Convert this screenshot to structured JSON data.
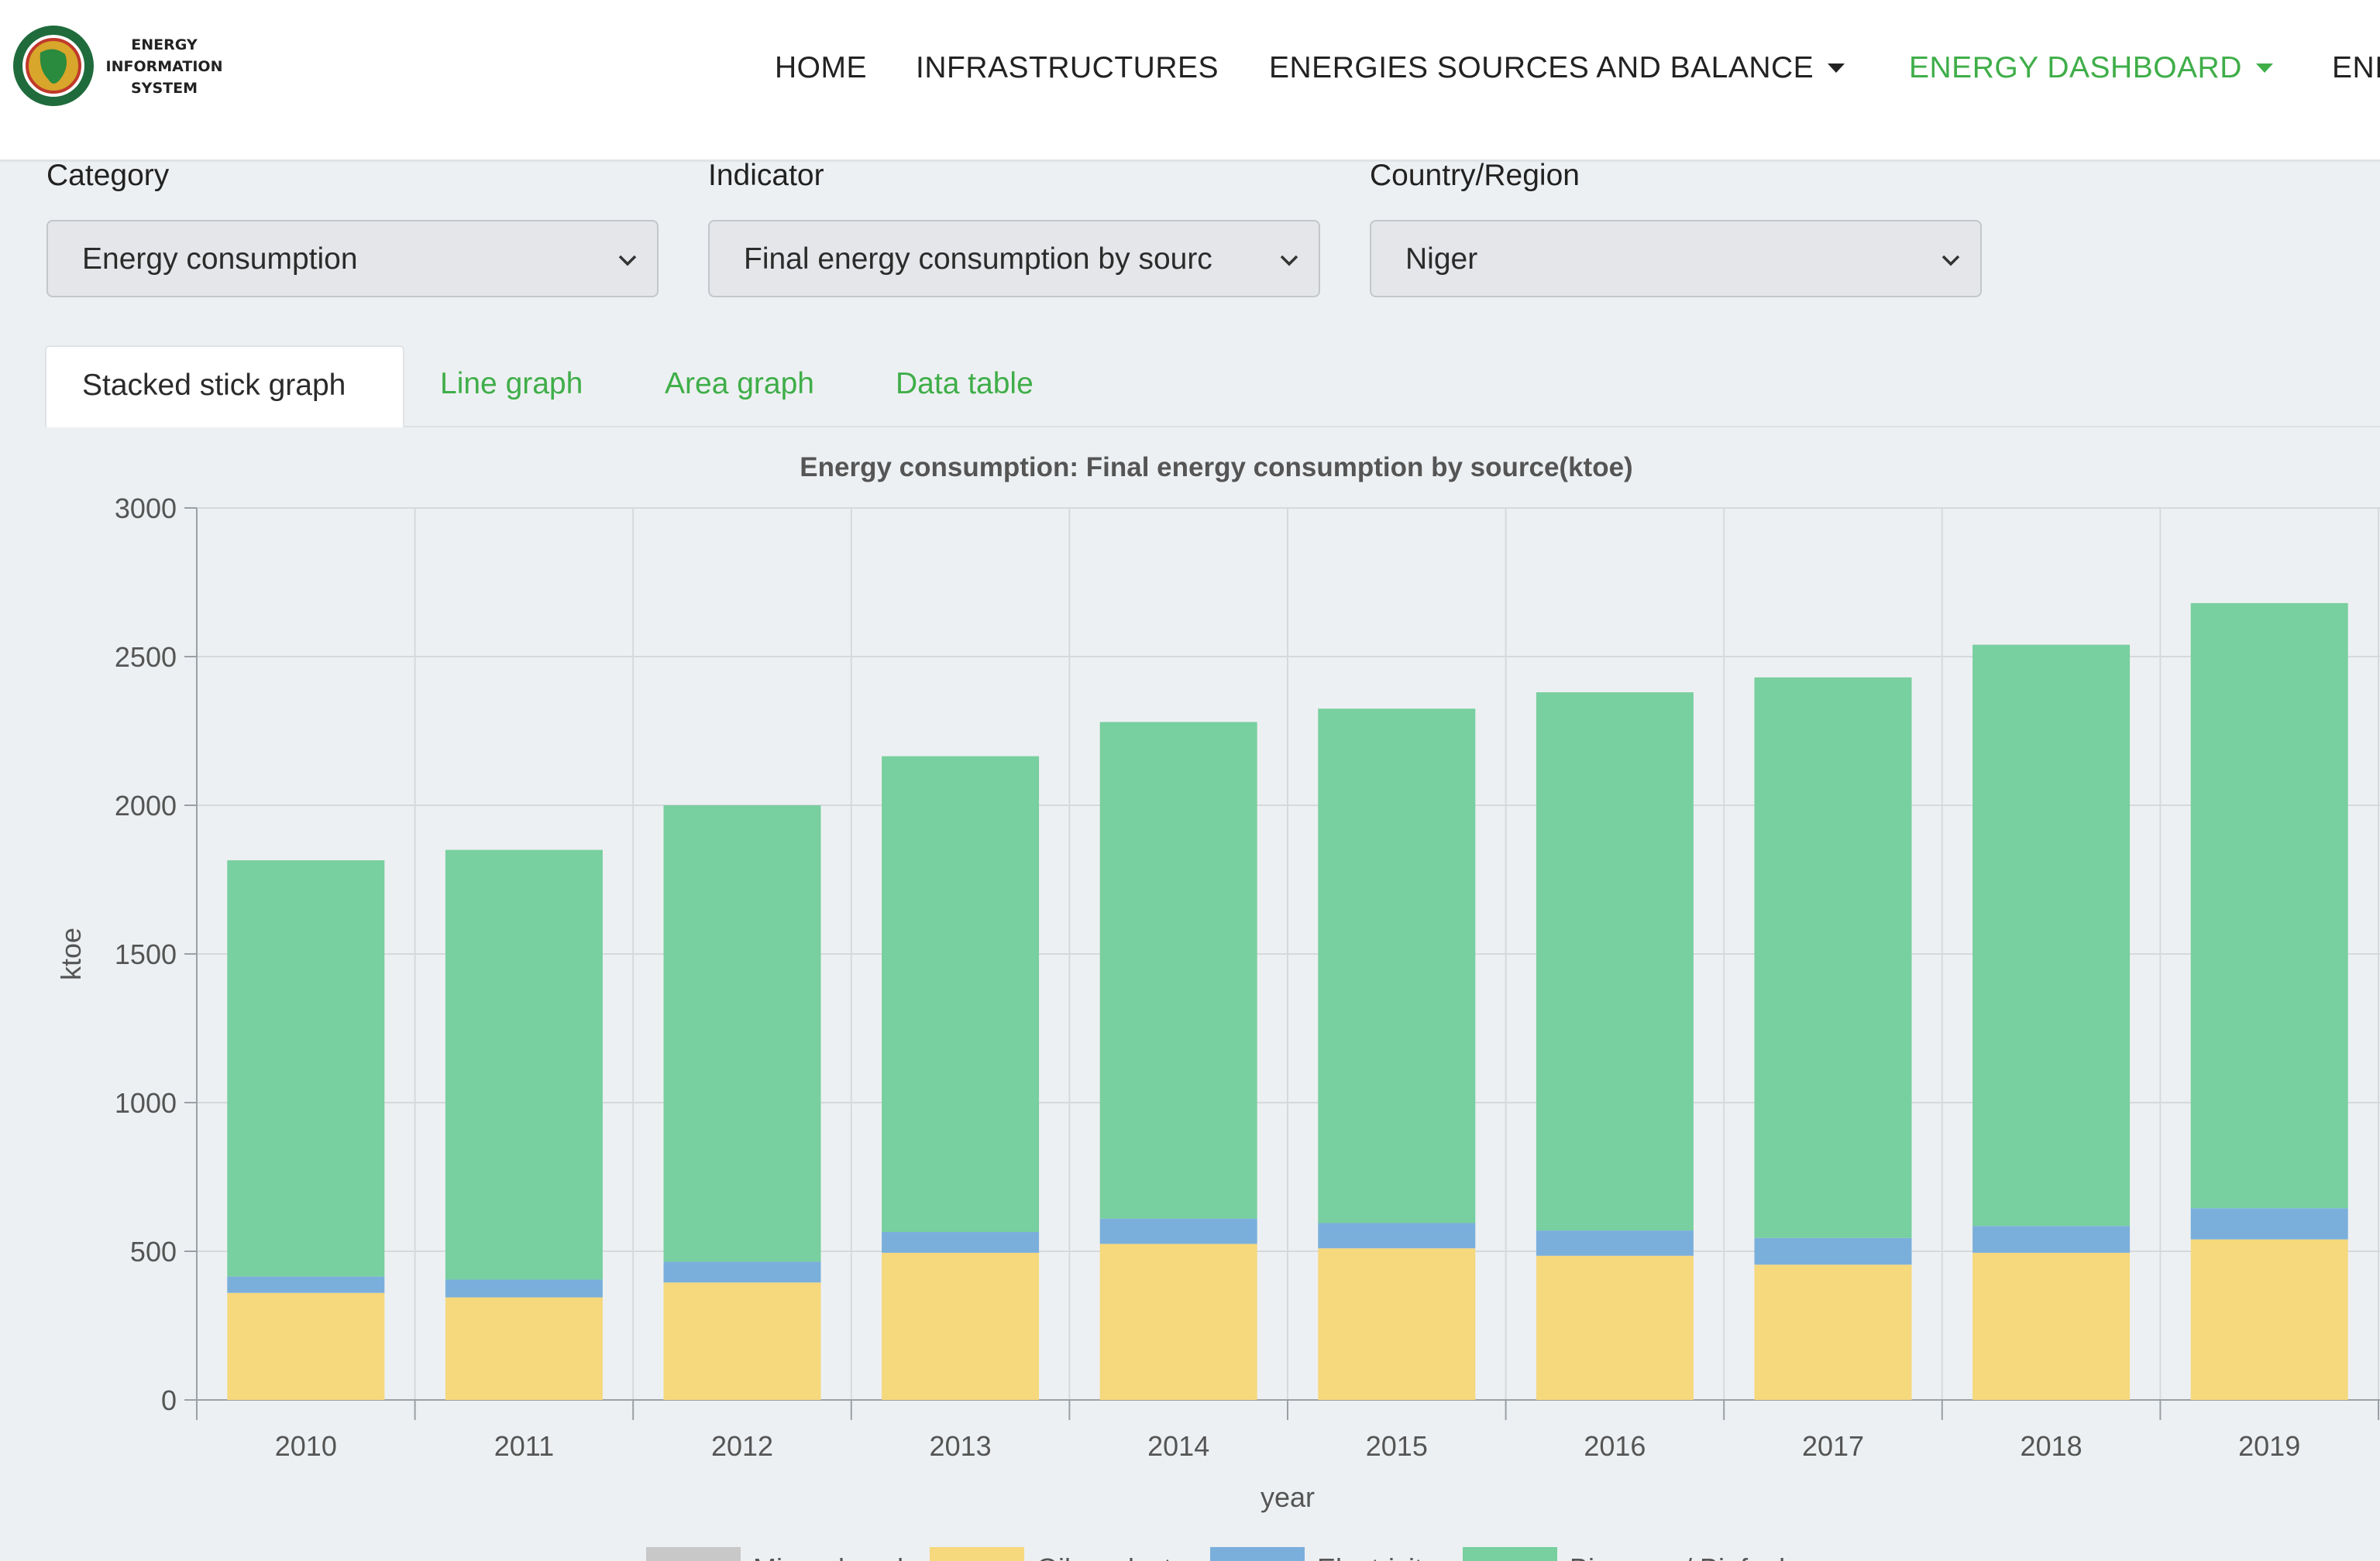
{
  "header": {
    "logo_lines": [
      "ENERGY",
      "INFORMATION",
      "SYSTEM"
    ],
    "nav": [
      {
        "label": "HOME",
        "active": false,
        "dropdown": false
      },
      {
        "label": "INFRASTRUCTURES",
        "active": false,
        "dropdown": false
      },
      {
        "label": "ENERGIES SOURCES AND BALANCE",
        "active": false,
        "dropdown": true
      },
      {
        "label": "ENERGY DASHBOARD",
        "active": true,
        "dropdown": true
      },
      {
        "label": "ENI",
        "active": false,
        "dropdown": false
      }
    ]
  },
  "filters": {
    "category": {
      "label": "Category",
      "value": "Energy consumption"
    },
    "indicator": {
      "label": "Indicator",
      "value": "Final energy consumption by sourc"
    },
    "region": {
      "label": "Country/Region",
      "value": "Niger"
    }
  },
  "tabs": [
    {
      "label": "Stacked stick graph",
      "active": true
    },
    {
      "label": "Line graph",
      "active": false
    },
    {
      "label": "Area graph",
      "active": false
    },
    {
      "label": "Data table",
      "active": false
    }
  ],
  "colors": {
    "accent": "#3fae49"
  },
  "chart_data": {
    "type": "bar",
    "stacked": true,
    "title": "Energy consumption: Final energy consumption by source(ktoe)",
    "xlabel": "year",
    "ylabel": "ktoe",
    "ylim": [
      0,
      3000
    ],
    "yticks": [
      0,
      500,
      1000,
      1500,
      2000,
      2500,
      3000
    ],
    "grid": true,
    "legend_position": "bottom",
    "categories": [
      "2010",
      "2011",
      "2012",
      "2013",
      "2014",
      "2015",
      "2016",
      "2017",
      "2018",
      "2019"
    ],
    "series": [
      {
        "name": "Mineral coal",
        "color": "#c8c8c8",
        "values": [
          0,
          0,
          0,
          0,
          0,
          0,
          0,
          0,
          0,
          0
        ]
      },
      {
        "name": "Oil products",
        "color": "#f6d87d",
        "values": [
          360,
          345,
          395,
          495,
          525,
          510,
          485,
          455,
          495,
          540
        ]
      },
      {
        "name": "Electricity",
        "color": "#7aafdc",
        "values": [
          55,
          60,
          70,
          70,
          85,
          85,
          85,
          90,
          90,
          105
        ]
      },
      {
        "name": "Biomass / Biofuel",
        "color": "#78cf9f",
        "values": [
          1400,
          1445,
          1535,
          1600,
          1670,
          1730,
          1810,
          1885,
          1955,
          2035
        ]
      }
    ]
  }
}
